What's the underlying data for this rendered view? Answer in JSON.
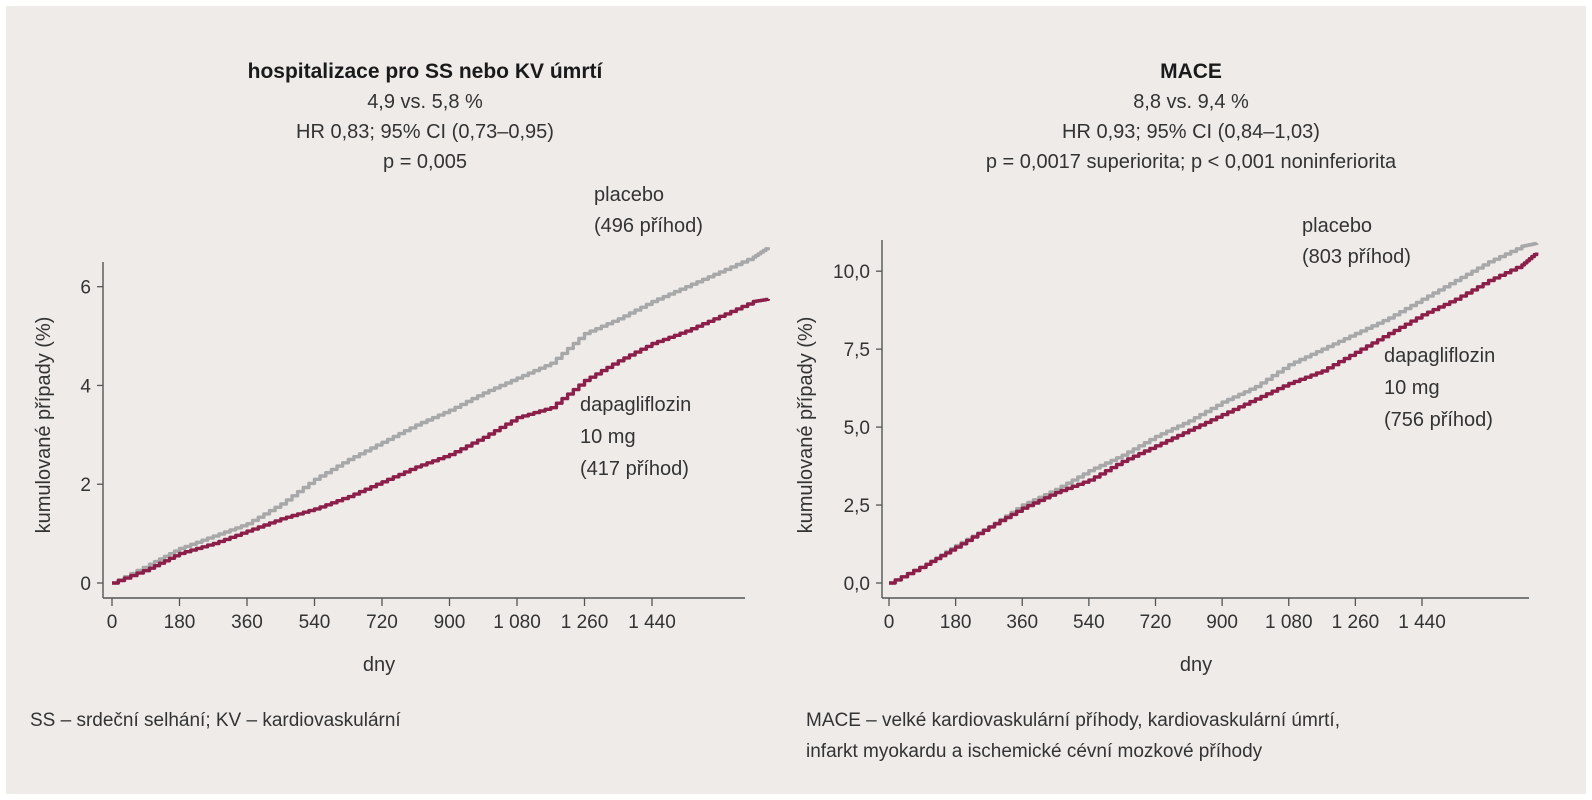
{
  "chart_data": [
    {
      "type": "line",
      "title": "hospitalizace pro SS nebo KV úmrtí",
      "subtitle": [
        "4,9 vs. 5,8 %",
        "HR 0,83; 95% CI (0,73–0,95)",
        "p = 0,005"
      ],
      "xlabel": "dny",
      "ylabel": "kumulované případy (%)",
      "xlim": [
        0,
        1900
      ],
      "ylim": [
        0,
        6.5
      ],
      "xticks": [
        0,
        180,
        360,
        540,
        720,
        900,
        1080,
        1260,
        1440
      ],
      "xtick_labels": [
        "0",
        "180",
        "360",
        "540",
        "720",
        "900",
        "1 080",
        "1 260",
        "1 440"
      ],
      "yticks": [
        0,
        2,
        4,
        6
      ],
      "ytick_labels": [
        "0",
        "2",
        "4",
        "6"
      ],
      "series": [
        {
          "name": "placebo",
          "events": "(496 příhod)",
          "color": "#a8a8a8",
          "x": [
            0,
            100,
            180,
            270,
            360,
            450,
            540,
            630,
            720,
            810,
            900,
            990,
            1080,
            1170,
            1260,
            1350,
            1440,
            1530,
            1620,
            1710,
            1750
          ],
          "y": [
            0,
            0.38,
            0.7,
            0.95,
            1.2,
            1.6,
            2.1,
            2.5,
            2.85,
            3.2,
            3.5,
            3.85,
            4.15,
            4.45,
            5.05,
            5.35,
            5.7,
            6.0,
            6.3,
            6.6,
            6.8
          ]
        },
        {
          "name": "dapagliflozin",
          "events": "(417 příhod)",
          "color": "#8c1f4a",
          "x": [
            0,
            100,
            180,
            270,
            360,
            450,
            540,
            630,
            720,
            810,
            900,
            990,
            1080,
            1170,
            1260,
            1350,
            1440,
            1530,
            1620,
            1710,
            1750
          ],
          "y": [
            0,
            0.3,
            0.6,
            0.8,
            1.05,
            1.3,
            1.5,
            1.75,
            2.05,
            2.35,
            2.6,
            2.95,
            3.35,
            3.55,
            4.1,
            4.5,
            4.85,
            5.1,
            5.4,
            5.7,
            5.75
          ]
        }
      ],
      "annotations": {
        "placebo": [
          "placebo",
          "(496 příhod)"
        ],
        "dapagliflozin": [
          "dapagliflozin",
          "10 mg",
          "(417 příhod)"
        ]
      },
      "footnote": [
        "SS – srdeční selhání; KV – kardiovaskulární"
      ]
    },
    {
      "type": "line",
      "title": "MACE",
      "subtitle": [
        "8,8 vs. 9,4 %",
        "HR 0,93; 95% CI (0,84–1,03)",
        "p = 0,0017 superiorita; p < 0,001 noninferiorita"
      ],
      "xlabel": "dny",
      "ylabel": "kumulované případy (%)",
      "xlim": [
        0,
        1900
      ],
      "ylim": [
        0,
        11
      ],
      "xticks": [
        0,
        180,
        360,
        540,
        720,
        900,
        1080,
        1260,
        1440
      ],
      "xtick_labels": [
        "0",
        "180",
        "360",
        "540",
        "720",
        "900",
        "1 080",
        "1 260",
        "1 440"
      ],
      "yticks": [
        0,
        2.5,
        5,
        7.5,
        10
      ],
      "ytick_labels": [
        "0,0",
        "2,5",
        "5,0",
        "7,5",
        "10,0"
      ],
      "series": [
        {
          "name": "placebo",
          "events": "(803 příhod)",
          "color": "#a8a8a8",
          "x": [
            0,
            100,
            180,
            270,
            360,
            450,
            540,
            630,
            720,
            810,
            900,
            990,
            1080,
            1170,
            1260,
            1350,
            1440,
            1530,
            1620,
            1710,
            1750
          ],
          "y": [
            0,
            0.6,
            1.2,
            1.8,
            2.5,
            3.0,
            3.6,
            4.1,
            4.7,
            5.2,
            5.8,
            6.3,
            7.0,
            7.5,
            8.0,
            8.5,
            9.1,
            9.7,
            10.3,
            10.8,
            10.9
          ]
        },
        {
          "name": "dapagliflozin",
          "events": "(756 příhod)",
          "color": "#8c1f4a",
          "x": [
            0,
            100,
            180,
            270,
            360,
            450,
            540,
            630,
            720,
            810,
            900,
            990,
            1080,
            1170,
            1260,
            1350,
            1440,
            1530,
            1620,
            1710,
            1750
          ],
          "y": [
            0,
            0.6,
            1.15,
            1.8,
            2.4,
            2.9,
            3.3,
            3.9,
            4.4,
            4.9,
            5.4,
            5.9,
            6.4,
            6.8,
            7.4,
            8.0,
            8.6,
            9.1,
            9.7,
            10.2,
            10.6
          ]
        }
      ],
      "annotations": {
        "placebo": [
          "placebo",
          "(803 příhod)"
        ],
        "dapagliflozin": [
          "dapagliflozin",
          "10 mg",
          "(756 příhod)"
        ]
      },
      "footnote": [
        "MACE – velké kardiovaskulární příhody, kardiovaskulární úmrtí,",
        "infarkt myokardu a ischemické cévní mozkové příhody"
      ]
    }
  ]
}
